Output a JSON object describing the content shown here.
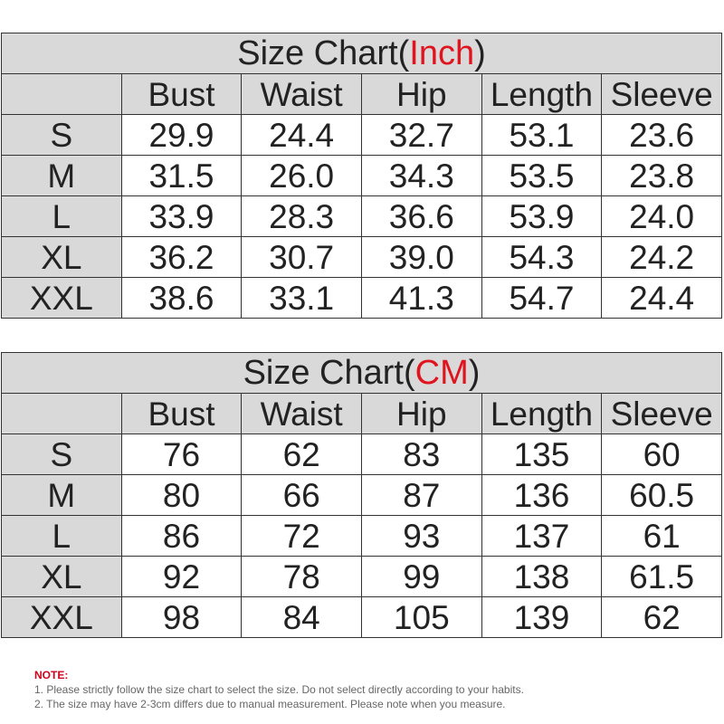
{
  "charts": [
    {
      "title_prefix": "Size Chart(",
      "unit": "Inch",
      "title_suffix": ")",
      "headers": [
        "",
        "Bust",
        "Waist",
        "Hip",
        "Length",
        "Sleeve"
      ],
      "rows": [
        [
          "S",
          "29.9",
          "24.4",
          "32.7",
          "53.1",
          "23.6"
        ],
        [
          "M",
          "31.5",
          "26.0",
          "34.3",
          "53.5",
          "23.8"
        ],
        [
          "L",
          "33.9",
          "28.3",
          "36.6",
          "53.9",
          "24.0"
        ],
        [
          "XL",
          "36.2",
          "30.7",
          "39.0",
          "54.3",
          "24.2"
        ],
        [
          "XXL",
          "38.6",
          "33.1",
          "41.3",
          "54.7",
          "24.4"
        ]
      ]
    },
    {
      "title_prefix": "Size Chart(",
      "unit": "CM",
      "title_suffix": ")",
      "headers": [
        "",
        "Bust",
        "Waist",
        "Hip",
        "Length",
        "Sleeve"
      ],
      "rows": [
        [
          "S",
          "76",
          "62",
          "83",
          "135",
          "60"
        ],
        [
          "M",
          "80",
          "66",
          "87",
          "136",
          "60.5"
        ],
        [
          "L",
          "86",
          "72",
          "93",
          "137",
          "61"
        ],
        [
          "XL",
          "92",
          "78",
          "99",
          "138",
          "61.5"
        ],
        [
          "XXL",
          "98",
          "84",
          "105",
          "139",
          "62"
        ]
      ]
    }
  ],
  "note": {
    "label": "NOTE:",
    "lines": [
      "1. Please strictly follow the size chart  to select the size. Do not select directly according to your habits.",
      "2. The size may have 2-3cm differs due to manual measurement. Please note when you measure."
    ]
  },
  "colors": {
    "accent": "#e0141e",
    "header_bg": "#d9d9d9",
    "note_label": "#d0021b"
  }
}
